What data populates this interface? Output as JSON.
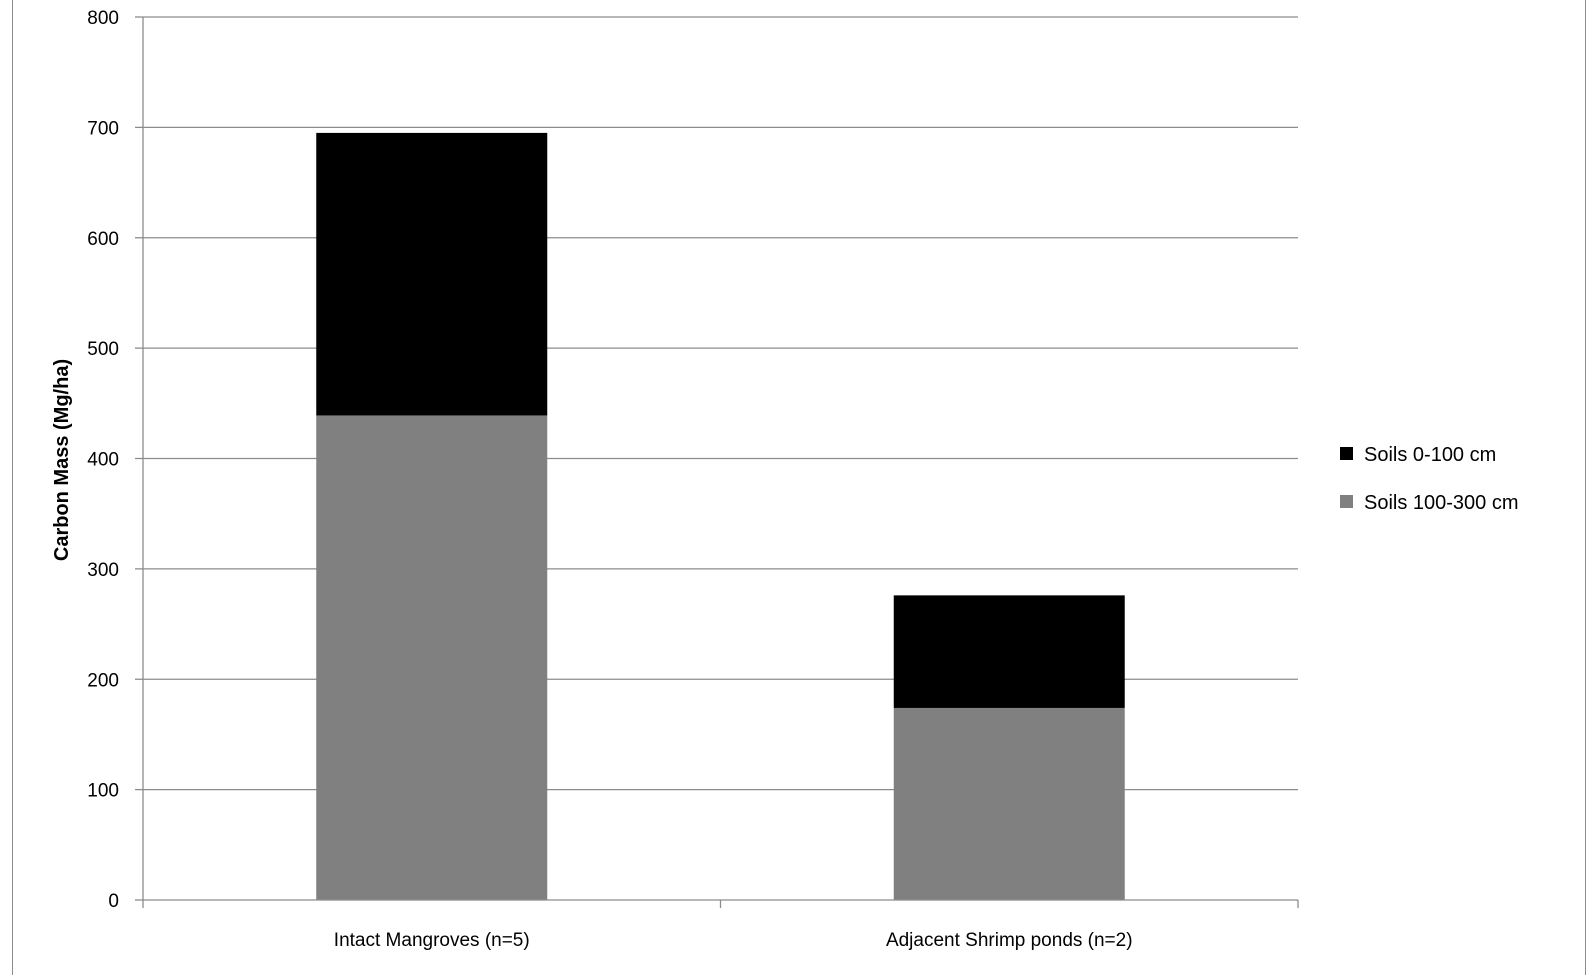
{
  "chart_data": {
    "type": "bar",
    "stacked": true,
    "title": "",
    "xlabel": "",
    "ylabel": "Carbon Mass (Mg/ha)",
    "ylim": [
      0,
      800
    ],
    "yticks": [
      0,
      100,
      200,
      300,
      400,
      500,
      600,
      700,
      800
    ],
    "grid": true,
    "legend_position": "right",
    "categories": [
      "Intact Mangroves (n=5)",
      "Adjacent Shrimp ponds (n=2)"
    ],
    "series": [
      {
        "name": "Soils 100-300 cm",
        "color": "#808080",
        "values": [
          439,
          174
        ]
      },
      {
        "name": "Soils 0-100 cm",
        "color": "#000000",
        "values": [
          256,
          102
        ]
      }
    ],
    "legend_order": [
      1,
      0
    ]
  }
}
